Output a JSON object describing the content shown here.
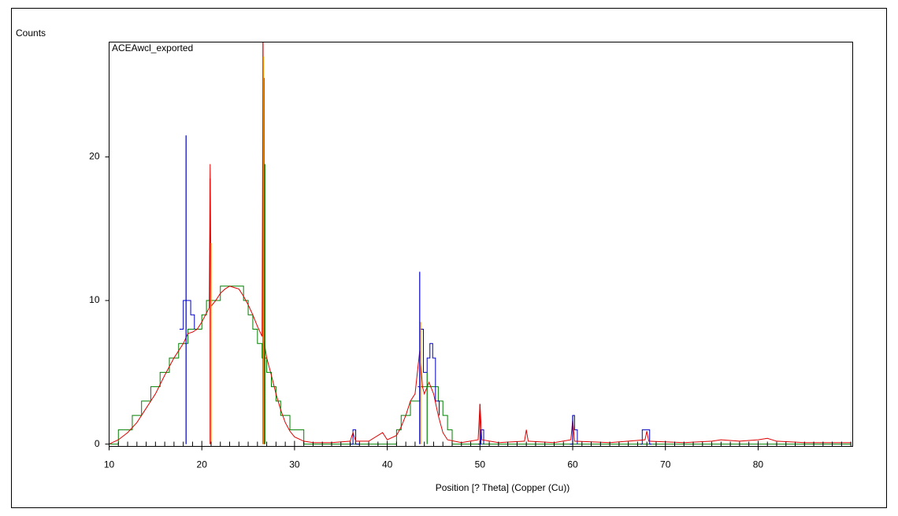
{
  "chart_data": {
    "type": "line",
    "y_axis_label": "Counts",
    "title": "ACEAwcl_exported",
    "x_axis_label": "Position [? Theta] (Copper (Cu))",
    "xlim": [
      10,
      90.2
    ],
    "ylim": [
      -0.16,
      28
    ],
    "xticks": [
      10,
      20,
      30,
      40,
      50,
      60,
      70,
      80
    ],
    "xminorticks": [
      11,
      12,
      13,
      14,
      15,
      16,
      17,
      18,
      19,
      21,
      22,
      23,
      24,
      25,
      26,
      27,
      28,
      29,
      31,
      32,
      33,
      34,
      35,
      36,
      37,
      38,
      39,
      41,
      42,
      43,
      44,
      45,
      46,
      47,
      48,
      49,
      51,
      52,
      53,
      54,
      55,
      56,
      57,
      58,
      59,
      61,
      62,
      63,
      64,
      65,
      66,
      67,
      68,
      69,
      71,
      72,
      73,
      74,
      75,
      76,
      77,
      78,
      79,
      81,
      82,
      83,
      84,
      85,
      86,
      87,
      88,
      89,
      90
    ],
    "yticks": [
      0,
      10,
      20
    ],
    "series": [
      {
        "style": "step",
        "color": "#008000",
        "x": [
          10,
          11,
          12,
          12.5,
          13,
          13.5,
          14,
          14.5,
          15,
          15.5,
          16,
          16.5,
          17,
          17.5,
          18,
          18.5,
          19,
          19.5,
          20,
          20.5,
          21,
          21.5,
          22,
          22.5,
          23,
          23.5,
          24,
          24.5,
          25,
          25.5,
          26,
          26.5,
          27,
          27.5,
          28,
          28.5,
          29,
          29.5,
          30,
          31,
          40.5,
          41,
          41.5,
          42,
          42.5,
          43,
          43.5,
          44,
          44.5,
          45,
          45.5,
          46,
          46.5,
          47,
          90
        ],
        "values": [
          0,
          1,
          1,
          2,
          2,
          3,
          3,
          4,
          4,
          5,
          5,
          6,
          6,
          7,
          7,
          8,
          8,
          8,
          9,
          10,
          10,
          10,
          11,
          11,
          11,
          11,
          11,
          10,
          9,
          8,
          7,
          6,
          5,
          4,
          3,
          2,
          2,
          1,
          1,
          0,
          0,
          1,
          2,
          2,
          3,
          3,
          4,
          4,
          4,
          4,
          3,
          2,
          1,
          0,
          0
        ]
      },
      {
        "style": "step",
        "color": "#0000c0",
        "x": [
          17.6,
          18,
          18.8,
          19.2,
          20,
          36,
          36.3,
          36.6,
          37,
          42,
          43.3,
          43.6,
          43.9,
          44.3,
          44.6,
          44.9,
          45.2,
          45.6,
          47,
          49.8,
          50.1,
          50.4,
          52,
          59.7,
          60,
          60.2,
          60.5,
          62,
          67.3,
          67.5,
          68.3,
          68.5
        ],
        "values": [
          8,
          10,
          9,
          8,
          null,
          0,
          1,
          0,
          0,
          null,
          4,
          8,
          5,
          6,
          7,
          6,
          3,
          2,
          null,
          0,
          1,
          0,
          null,
          0,
          2,
          1,
          0,
          null,
          0,
          1,
          0,
          0
        ]
      },
      {
        "style": "line",
        "color": "#e00000",
        "x": [
          10,
          11,
          12,
          13,
          14,
          15,
          16,
          17,
          18,
          18.5,
          19,
          19.5,
          20,
          20.8,
          20.9,
          21,
          21.5,
          22,
          22.5,
          23,
          23.5,
          24,
          24.5,
          25,
          25.5,
          26,
          26.5,
          26.6,
          26.7,
          27,
          27.5,
          28,
          28.5,
          29,
          29.5,
          30,
          31,
          32,
          34,
          36,
          36.3,
          36.6,
          38,
          39.5,
          40,
          41,
          41.5,
          42,
          42.5,
          43,
          43.5,
          43.8,
          44,
          44.5,
          45,
          45.5,
          46,
          46.5,
          48,
          49.8,
          50,
          50.2,
          52,
          54.8,
          55,
          55.2,
          58,
          59.8,
          60,
          60.2,
          64,
          67.8,
          68,
          68.2,
          72,
          75,
          76,
          78,
          80,
          81,
          82,
          85,
          90
        ],
        "values": [
          0,
          0.3,
          0.8,
          1.5,
          2.5,
          3.5,
          4.8,
          6,
          7,
          7.7,
          7.8,
          8,
          8.5,
          9.5,
          19.5,
          9.6,
          10,
          10.5,
          10.8,
          11,
          10.9,
          10.8,
          10.3,
          9.7,
          9,
          8.2,
          7.5,
          28,
          7.2,
          6,
          4.8,
          3.5,
          2.4,
          1.5,
          0.9,
          0.5,
          0.2,
          0.1,
          0.1,
          0.2,
          0.8,
          0.2,
          0.2,
          0.8,
          0.3,
          0.6,
          1.2,
          2,
          3,
          3.5,
          6.5,
          4,
          3.5,
          4.3,
          3.5,
          2,
          0.8,
          0.3,
          0.1,
          0.3,
          2.8,
          0.3,
          0.1,
          0.2,
          1,
          0.2,
          0.1,
          0.3,
          1.7,
          0.2,
          0.1,
          0.3,
          0.9,
          0.2,
          0.1,
          0.2,
          0.3,
          0.2,
          0.3,
          0.4,
          0.2,
          0.1,
          0.1
        ]
      },
      {
        "style": "stick",
        "color": "#0000c0",
        "x": [
          18.3,
          26.7,
          43.5,
          60
        ],
        "values": [
          21.5,
          25.5,
          12,
          2
        ]
      },
      {
        "style": "stick",
        "color": "#e00000",
        "x": [
          20.9,
          26.6,
          50
        ],
        "values": [
          18.5,
          28,
          2.8
        ]
      },
      {
        "style": "stick",
        "color": "#008000",
        "x": [
          26.8,
          44.3
        ],
        "values": [
          19.5,
          5
        ]
      },
      {
        "style": "stick",
        "color": "#ff8c00",
        "x": [
          21,
          26.65,
          43.6
        ],
        "values": [
          14,
          27,
          8.5
        ]
      }
    ]
  }
}
